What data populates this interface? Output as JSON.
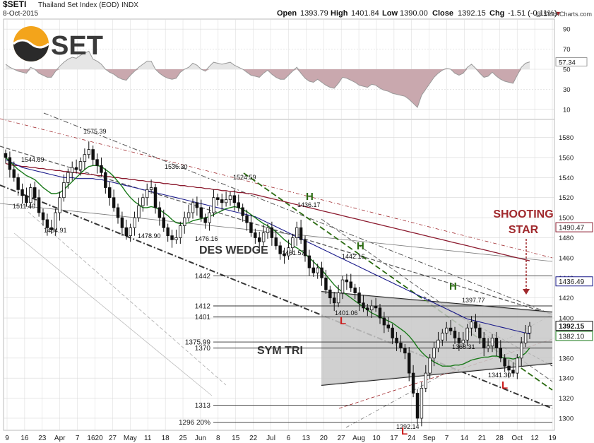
{
  "header": {
    "symbol": "$SETI",
    "name": "Thailand Set Index (EOD)",
    "exchange": "INDX",
    "date": "8-Oct-2015",
    "copyright": "@ StockCharts.com",
    "ohlc_labels": {
      "open": "Open",
      "high": "High",
      "low": "Low",
      "close": "Close",
      "chg": "Chg"
    },
    "ohlc_values": {
      "open": "1393.79",
      "high": "1401.84",
      "low": "1390.00",
      "close": "1392.15",
      "chg": "-1.51 (-0.11%)"
    },
    "chg_arrow": "▼"
  },
  "logo": {
    "text": "SET"
  },
  "colors": {
    "grid": "#d8d8d8",
    "price": "#111111",
    "ma_green": "#1a7a1a",
    "ma_blue": "#1a1a8a",
    "ma_red": "#8b1a2e",
    "annotation_red": "#a0282c",
    "annotation_green": "#2a6a10",
    "triangle_fill": "#c8c8c8",
    "rsi_line": "#999999",
    "rsi_fill": "#c9a8ae"
  },
  "annotations": {
    "des_wedge": "DES WEDGE",
    "sym_tri": "SYM TRI",
    "shooting_star_line1": "SHOOTING",
    "shooting_star_line2": "STAR",
    "h_marks": [
      "H",
      "H",
      "H"
    ],
    "l_marks": [
      "L",
      "L",
      "L"
    ]
  },
  "chart_data": {
    "type": "candlestick",
    "rsi_axis": {
      "ticks": [
        90,
        70,
        50,
        30,
        10
      ],
      "range": [
        0,
        100
      ],
      "last_value": "57.34"
    },
    "price_axis": {
      "ticks": [
        1580,
        1560,
        1540,
        1520,
        1500,
        1480,
        1460,
        1440,
        1420,
        1400,
        1380,
        1360,
        1340,
        1320,
        1300
      ],
      "range": [
        1288,
        1598
      ],
      "scale": "linear"
    },
    "price_tags": [
      {
        "label": "1490.47",
        "value": 1490.47
      },
      {
        "label": "1436.49",
        "value": 1436.49
      },
      {
        "label": "1392.15",
        "value": 1392.15
      },
      {
        "label": "1382.10",
        "value": 1382.1
      }
    ],
    "x_tick_labels": [
      "9",
      "16",
      "23",
      "Apr",
      "7",
      "1620",
      "27",
      "May",
      "11",
      "18",
      "25",
      "Jun",
      "8",
      "15",
      "22",
      "Jul",
      "6",
      "13",
      "20",
      "27",
      "Aug",
      "10",
      "17",
      "24",
      "Sep",
      "7",
      "14",
      "21",
      "28",
      "Oct",
      "12",
      "19"
    ],
    "horizontal_levels": [
      {
        "label": "1442",
        "value": 1442
      },
      {
        "label": "1412",
        "value": 1412
      },
      {
        "label": "1401",
        "value": 1401
      },
      {
        "label": "1375.99",
        "value": 1375.99
      },
      {
        "label": "1370",
        "value": 1370
      },
      {
        "label": "1313",
        "value": 1313
      },
      {
        "label": "1296  20%",
        "value": 1296
      }
    ],
    "point_labels": [
      {
        "label": "1575.39",
        "value": 1575.39
      },
      {
        "label": "1544.69",
        "value": 1544.69
      },
      {
        "label": "1536.30",
        "value": 1536.3
      },
      {
        "label": "1524.59",
        "value": 1524.59
      },
      {
        "label": "1511.40",
        "value": 1511.4
      },
      {
        "label": "1484.91",
        "value": 1484.91
      },
      {
        "label": "1478.90",
        "value": 1478.9
      },
      {
        "label": "1476.16",
        "value": 1476.16
      },
      {
        "label": "1436.17",
        "value": 1436.17
      },
      {
        "label": "1461.57",
        "value": 1461.57
      },
      {
        "label": "1442.16",
        "value": 1442.16
      },
      {
        "label": "1401.06",
        "value": 1401.06
      },
      {
        "label": "1397.77",
        "value": 1397.77
      },
      {
        "label": "1368.31",
        "value": 1368.31
      },
      {
        "label": "1341.30",
        "value": 1341.3
      },
      {
        "label": "1292.14",
        "value": 1292.14
      }
    ],
    "close": [
      1560,
      1548,
      1540,
      1528,
      1522,
      1515,
      1530,
      1520,
      1505,
      1498,
      1490,
      1488,
      1505,
      1520,
      1535,
      1545,
      1550,
      1548,
      1556,
      1563,
      1568,
      1558,
      1552,
      1545,
      1530,
      1520,
      1510,
      1500,
      1490,
      1482,
      1490,
      1500,
      1512,
      1520,
      1528,
      1530,
      1510,
      1500,
      1490,
      1482,
      1478,
      1480,
      1492,
      1500,
      1505,
      1515,
      1510,
      1500,
      1495,
      1505,
      1520,
      1518,
      1515,
      1518,
      1522,
      1515,
      1510,
      1502,
      1495,
      1485,
      1480,
      1476,
      1485,
      1490,
      1480,
      1472,
      1464,
      1462,
      1470,
      1480,
      1490,
      1478,
      1462,
      1450,
      1445,
      1450,
      1440,
      1428,
      1420,
      1415,
      1425,
      1438,
      1436,
      1430,
      1425,
      1415,
      1410,
      1408,
      1412,
      1410,
      1400,
      1393,
      1390,
      1380,
      1375,
      1370,
      1365,
      1345,
      1325,
      1300,
      1330,
      1345,
      1360,
      1370,
      1378,
      1385,
      1390,
      1387,
      1380,
      1375,
      1378,
      1390,
      1396,
      1390,
      1380,
      1370,
      1372,
      1380,
      1370,
      1360,
      1352,
      1348,
      1345,
      1360,
      1375,
      1385,
      1392
    ],
    "ma_green": [
      1560,
      1556,
      1552,
      1548,
      1545,
      1542,
      1540,
      1538,
      1534,
      1530,
      1527,
      1524,
      1524,
      1525,
      1528,
      1532,
      1536,
      1540,
      1544,
      1548,
      1551,
      1552,
      1552,
      1551,
      1548,
      1545,
      1541,
      1536,
      1531,
      1525,
      1520,
      1516,
      1513,
      1510,
      1510,
      1511,
      1510,
      1508,
      1505,
      1502,
      1498,
      1495,
      1494,
      1494,
      1495,
      1497,
      1498,
      1499,
      1500,
      1501,
      1503,
      1505,
      1507,
      1509,
      1510,
      1511,
      1510,
      1508,
      1506,
      1503,
      1500,
      1497,
      1494,
      1492,
      1489,
      1486,
      1482,
      1478,
      1475,
      1472,
      1470,
      1467,
      1464,
      1460,
      1456,
      1452,
      1448,
      1443,
      1438,
      1433,
      1429,
      1426,
      1423,
      1420,
      1417,
      1414,
      1411,
      1408,
      1405,
      1403,
      1401,
      1399,
      1397,
      1395,
      1392,
      1389,
      1386,
      1382,
      1377,
      1371,
      1366,
      1362,
      1359,
      1356,
      1354,
      1352,
      1352,
      1352,
      1353,
      1353,
      1354,
      1356,
      1358,
      1359,
      1360,
      1361,
      1361,
      1362,
      1362,
      1361,
      1360,
      1360,
      1359,
      1360,
      1362,
      1365,
      1370
    ],
    "ma_blue": [
      1558,
      1556,
      1554,
      1552,
      1550,
      1549,
      1548,
      1547,
      1546,
      1545,
      1544,
      1543,
      1542,
      1541,
      1540,
      1540,
      1540,
      1539,
      1539,
      1539,
      1539,
      1539,
      1538,
      1538,
      1537,
      1536,
      1535,
      1534,
      1533,
      1532,
      1531,
      1530,
      1529,
      1528,
      1527,
      1526,
      1525,
      1524,
      1523,
      1522,
      1521,
      1520,
      1519,
      1518,
      1517,
      1516,
      1515,
      1514,
      1513,
      1512,
      1511,
      1510,
      1509,
      1508,
      1507,
      1506,
      1505,
      1504,
      1503,
      1502,
      1501,
      1499,
      1497,
      1495,
      1493,
      1491,
      1489,
      1487,
      1485,
      1483,
      1481,
      1479,
      1477,
      1475,
      1473,
      1471,
      1469,
      1467,
      1465,
      1463,
      1461,
      1459,
      1457,
      1455,
      1453,
      1451,
      1449,
      1447,
      1445,
      1443,
      1441,
      1439,
      1437,
      1435,
      1433,
      1431,
      1429,
      1427,
      1425,
      1423,
      1421,
      1419,
      1417,
      1415,
      1413,
      1411,
      1409,
      1407,
      1405,
      1403,
      1401,
      1399,
      1398,
      1397,
      1396,
      1395,
      1394,
      1393,
      1392,
      1391,
      1390,
      1389,
      1388,
      1387,
      1386,
      1385,
      1384
    ],
    "ma_red": [
      1554,
      1553,
      1552,
      1552,
      1551,
      1551,
      1550,
      1550,
      1549,
      1549,
      1548,
      1548,
      1547,
      1547,
      1546,
      1546,
      1545,
      1545,
      1544,
      1544,
      1543,
      1543,
      1542,
      1542,
      1541,
      1541,
      1540,
      1540,
      1539,
      1539,
      1538,
      1538,
      1537,
      1537,
      1536,
      1536,
      1535,
      1535,
      1534,
      1534,
      1533,
      1533,
      1532,
      1532,
      1531,
      1531,
      1530,
      1530,
      1529,
      1529,
      1528,
      1528,
      1527,
      1527,
      1526,
      1526,
      1525,
      1525,
      1524,
      1524,
      1523,
      1522,
      1521,
      1520,
      1519,
      1518,
      1517,
      1516,
      1515,
      1514,
      1513,
      1512,
      1511,
      1510,
      1509,
      1508,
      1507,
      1506,
      1505,
      1504,
      1503,
      1502,
      1501,
      1500,
      1499,
      1498,
      1497,
      1496,
      1495,
      1494,
      1493,
      1492,
      1491,
      1490,
      1489,
      1488,
      1487,
      1486,
      1485,
      1484,
      1483,
      1482,
      1481,
      1480,
      1479,
      1478,
      1477,
      1476,
      1475,
      1474,
      1473,
      1472,
      1471,
      1470,
      1469,
      1468,
      1467,
      1466,
      1465,
      1464,
      1463,
      1462,
      1461,
      1460,
      1459,
      1458,
      1457
    ],
    "rsi": [
      55,
      52,
      50,
      48,
      47,
      46,
      52,
      50,
      46,
      44,
      42,
      42,
      48,
      53,
      57,
      60,
      62,
      61,
      64,
      66,
      68,
      60,
      58,
      55,
      50,
      47,
      45,
      42,
      40,
      39,
      44,
      48,
      52,
      55,
      58,
      58,
      50,
      46,
      43,
      41,
      40,
      41,
      47,
      50,
      52,
      56,
      54,
      50,
      48,
      53,
      57,
      56,
      55,
      56,
      57,
      54,
      52,
      50,
      47,
      44,
      43,
      42,
      46,
      49,
      45,
      42,
      40,
      40,
      44,
      48,
      52,
      46,
      41,
      38,
      37,
      40,
      37,
      34,
      32,
      31,
      36,
      42,
      41,
      39,
      37,
      34,
      33,
      32,
      35,
      34,
      31,
      29,
      28,
      26,
      25,
      24,
      23,
      20,
      16,
      12,
      24,
      30,
      36,
      42,
      46,
      49,
      51,
      50,
      46,
      44,
      46,
      52,
      55,
      51,
      46,
      42,
      43,
      47,
      43,
      40,
      38,
      37,
      36,
      44,
      52,
      56,
      57.34
    ]
  }
}
